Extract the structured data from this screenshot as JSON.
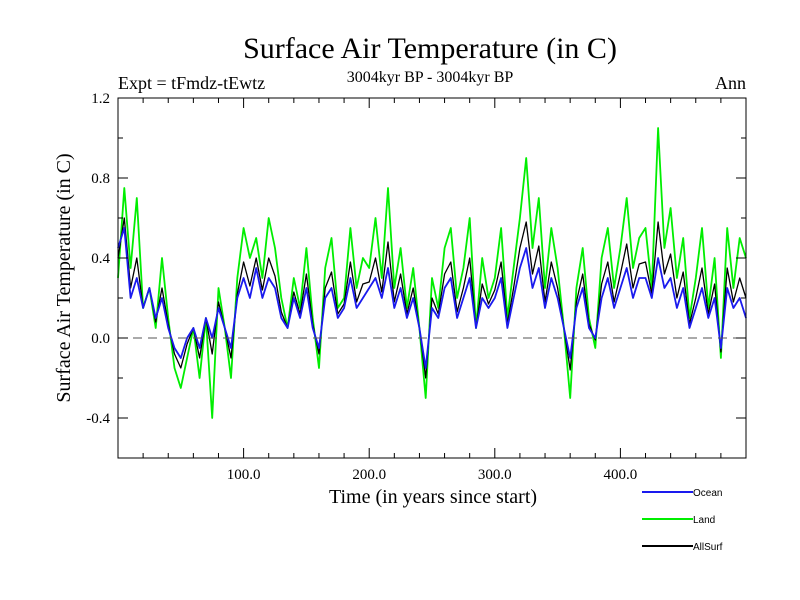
{
  "chart_data": {
    "type": "line",
    "title": "Surface Air Temperature (in C)",
    "subtitle": "3004kyr BP - 3004kyr BP",
    "experiment_label": "Expt = tFmdz-tEwtz",
    "season_label": "Ann",
    "xlabel": "Time (in years since start)",
    "ylabel": "Surface Air Temperature (in C)",
    "xlim": [
      0,
      500
    ],
    "ylim": [
      -0.6,
      1.2
    ],
    "xticks": [
      100,
      200,
      300,
      400
    ],
    "xtick_labels": [
      "100.0",
      "200.0",
      "300.0",
      "400.0"
    ],
    "yticks": [
      -0.4,
      0.0,
      0.4,
      0.8,
      1.2
    ],
    "ytick_labels": [
      "-0.4",
      "0.0",
      "0.4",
      "0.8",
      "1.2"
    ],
    "reference_line": 0.0,
    "legend_position": "bottom-right",
    "series": [
      {
        "name": "Land",
        "color": "#00ee00",
        "x": [
          0,
          5,
          10,
          15,
          20,
          25,
          30,
          35,
          40,
          45,
          50,
          55,
          60,
          65,
          70,
          75,
          80,
          85,
          90,
          95,
          100,
          105,
          110,
          115,
          120,
          125,
          130,
          135,
          140,
          145,
          150,
          155,
          160,
          165,
          170,
          175,
          180,
          185,
          190,
          195,
          200,
          205,
          210,
          215,
          220,
          225,
          230,
          235,
          240,
          245,
          250,
          255,
          260,
          265,
          270,
          275,
          280,
          285,
          290,
          295,
          300,
          305,
          310,
          315,
          320,
          325,
          330,
          335,
          340,
          345,
          350,
          355,
          360,
          365,
          370,
          375,
          380,
          385,
          390,
          395,
          400,
          405,
          410,
          415,
          420,
          425,
          430,
          435,
          440,
          445,
          450,
          455,
          460,
          465,
          470,
          475,
          480,
          485,
          490,
          495,
          500
        ],
        "values": [
          0.3,
          0.75,
          0.35,
          0.7,
          0.15,
          0.25,
          0.05,
          0.4,
          0.1,
          -0.15,
          -0.25,
          -0.1,
          0.05,
          -0.2,
          0.1,
          -0.4,
          0.25,
          0.05,
          -0.2,
          0.3,
          0.55,
          0.4,
          0.5,
          0.3,
          0.6,
          0.45,
          0.2,
          0.05,
          0.3,
          0.15,
          0.45,
          0.1,
          -0.15,
          0.35,
          0.5,
          0.15,
          0.2,
          0.55,
          0.25,
          0.4,
          0.35,
          0.6,
          0.3,
          0.75,
          0.25,
          0.45,
          0.15,
          0.35,
          0.05,
          -0.3,
          0.3,
          0.15,
          0.45,
          0.55,
          0.2,
          0.35,
          0.6,
          0.05,
          0.4,
          0.2,
          0.3,
          0.55,
          0.1,
          0.35,
          0.6,
          0.9,
          0.45,
          0.7,
          0.25,
          0.55,
          0.35,
          0.05,
          -0.3,
          0.25,
          0.45,
          0.1,
          -0.05,
          0.4,
          0.55,
          0.25,
          0.45,
          0.7,
          0.35,
          0.5,
          0.55,
          0.25,
          1.05,
          0.45,
          0.65,
          0.3,
          0.5,
          0.1,
          0.3,
          0.55,
          0.15,
          0.4,
          -0.1,
          0.55,
          0.25,
          0.5,
          0.4
        ]
      },
      {
        "name": "Ocean",
        "color": "#1a1aee",
        "x": [
          0,
          5,
          10,
          15,
          20,
          25,
          30,
          35,
          40,
          45,
          50,
          55,
          60,
          65,
          70,
          75,
          80,
          85,
          90,
          95,
          100,
          105,
          110,
          115,
          120,
          125,
          130,
          135,
          140,
          145,
          150,
          155,
          160,
          165,
          170,
          175,
          180,
          185,
          190,
          195,
          200,
          205,
          210,
          215,
          220,
          225,
          230,
          235,
          240,
          245,
          250,
          255,
          260,
          265,
          270,
          275,
          280,
          285,
          290,
          295,
          300,
          305,
          310,
          315,
          320,
          325,
          330,
          335,
          340,
          345,
          350,
          355,
          360,
          365,
          370,
          375,
          380,
          385,
          390,
          395,
          400,
          405,
          410,
          415,
          420,
          425,
          430,
          435,
          440,
          445,
          450,
          455,
          460,
          465,
          470,
          475,
          480,
          485,
          490,
          495,
          500
        ],
        "values": [
          0.45,
          0.55,
          0.2,
          0.3,
          0.15,
          0.25,
          0.1,
          0.2,
          0.05,
          -0.05,
          -0.1,
          0.0,
          0.05,
          -0.05,
          0.1,
          0.0,
          0.15,
          0.05,
          -0.05,
          0.2,
          0.3,
          0.2,
          0.35,
          0.2,
          0.3,
          0.25,
          0.1,
          0.05,
          0.2,
          0.1,
          0.25,
          0.05,
          -0.05,
          0.2,
          0.25,
          0.1,
          0.15,
          0.3,
          0.15,
          0.2,
          0.25,
          0.3,
          0.2,
          0.35,
          0.15,
          0.25,
          0.1,
          0.2,
          0.05,
          -0.15,
          0.15,
          0.1,
          0.25,
          0.3,
          0.1,
          0.2,
          0.3,
          0.05,
          0.2,
          0.15,
          0.2,
          0.3,
          0.05,
          0.2,
          0.35,
          0.45,
          0.25,
          0.35,
          0.15,
          0.3,
          0.2,
          0.05,
          -0.1,
          0.15,
          0.25,
          0.05,
          0.0,
          0.2,
          0.3,
          0.15,
          0.25,
          0.35,
          0.2,
          0.3,
          0.3,
          0.2,
          0.4,
          0.25,
          0.3,
          0.15,
          0.25,
          0.05,
          0.15,
          0.25,
          0.1,
          0.2,
          -0.05,
          0.25,
          0.15,
          0.2,
          0.1
        ]
      },
      {
        "name": "AllSurf",
        "color": "#000000",
        "x": [
          0,
          5,
          10,
          15,
          20,
          25,
          30,
          35,
          40,
          45,
          50,
          55,
          60,
          65,
          70,
          75,
          80,
          85,
          90,
          95,
          100,
          105,
          110,
          115,
          120,
          125,
          130,
          135,
          140,
          145,
          150,
          155,
          160,
          165,
          170,
          175,
          180,
          185,
          190,
          195,
          200,
          205,
          210,
          215,
          220,
          225,
          230,
          235,
          240,
          245,
          250,
          255,
          260,
          265,
          270,
          275,
          280,
          285,
          290,
          295,
          300,
          305,
          310,
          315,
          320,
          325,
          330,
          335,
          340,
          345,
          350,
          355,
          360,
          365,
          370,
          375,
          380,
          385,
          390,
          395,
          400,
          405,
          410,
          415,
          420,
          425,
          430,
          435,
          440,
          445,
          450,
          455,
          460,
          465,
          470,
          475,
          480,
          485,
          490,
          495,
          500
        ],
        "values": [
          0.4,
          0.6,
          0.25,
          0.4,
          0.15,
          0.25,
          0.08,
          0.25,
          0.07,
          -0.08,
          -0.15,
          -0.03,
          0.05,
          -0.1,
          0.1,
          -0.08,
          0.18,
          0.05,
          -0.1,
          0.22,
          0.38,
          0.26,
          0.4,
          0.24,
          0.4,
          0.31,
          0.13,
          0.05,
          0.23,
          0.12,
          0.32,
          0.07,
          -0.08,
          0.25,
          0.33,
          0.12,
          0.17,
          0.38,
          0.18,
          0.27,
          0.28,
          0.4,
          0.23,
          0.48,
          0.18,
          0.32,
          0.12,
          0.25,
          0.05,
          -0.2,
          0.2,
          0.12,
          0.32,
          0.38,
          0.13,
          0.25,
          0.4,
          0.05,
          0.27,
          0.17,
          0.24,
          0.38,
          0.07,
          0.25,
          0.45,
          0.58,
          0.32,
          0.46,
          0.18,
          0.38,
          0.25,
          0.05,
          -0.16,
          0.18,
          0.32,
          0.07,
          -0.01,
          0.27,
          0.38,
          0.18,
          0.32,
          0.47,
          0.25,
          0.37,
          0.38,
          0.22,
          0.58,
          0.32,
          0.42,
          0.2,
          0.33,
          0.07,
          0.2,
          0.35,
          0.12,
          0.27,
          -0.07,
          0.35,
          0.18,
          0.3,
          0.2
        ]
      }
    ],
    "legend_order": [
      "Ocean",
      "Land",
      "AllSurf"
    ]
  }
}
